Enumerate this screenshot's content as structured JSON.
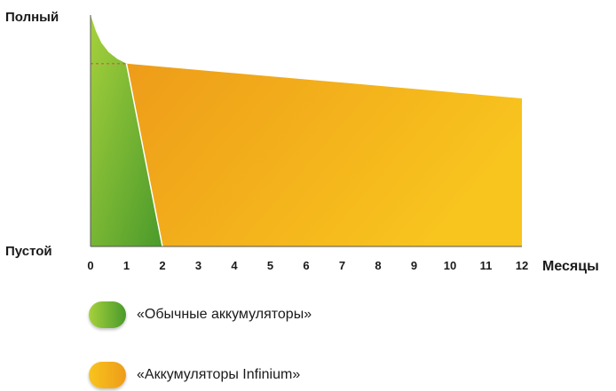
{
  "chart_data": {
    "type": "area",
    "ylabel_top": "Полный",
    "ylabel_bottom": "Пустой",
    "xlabel": "Месяцы",
    "x_ticks": [
      "0",
      "1",
      "2",
      "3",
      "4",
      "5",
      "6",
      "7",
      "8",
      "9",
      "10",
      "11",
      "12"
    ],
    "xlim": [
      0,
      12
    ],
    "ylim": [
      0,
      100
    ],
    "grid": false,
    "series": [
      {
        "name": "«Обычные аккумуляторы»",
        "color_start": "#9ccc3a",
        "color_end": "#4e9e2c",
        "x": [
          0,
          0.15,
          0.3,
          0.5,
          0.75,
          1,
          2
        ],
        "y": [
          100,
          93,
          88,
          84,
          81,
          79,
          0
        ]
      },
      {
        "name": "«Аккумуляторы Infinium»",
        "color_start": "#ee9e1a",
        "color_end": "#f7c31d",
        "x": [
          1,
          12
        ],
        "y": [
          79,
          64
        ]
      }
    ],
    "reference_level": 79
  }
}
